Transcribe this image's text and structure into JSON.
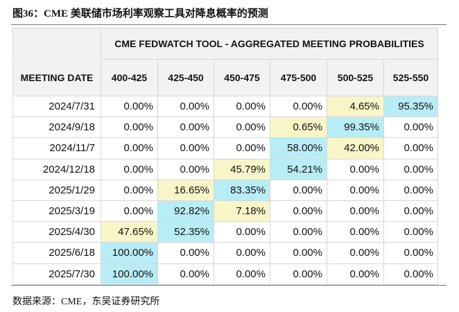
{
  "header": {
    "title": "图36：CME 美联储市场利率观察工具对降息概率的预测"
  },
  "table": {
    "super_header": "CME FEDWATCH TOOL - AGGREGATED MEETING PROBABILITIES",
    "columns": [
      "MEETING DATE",
      "400-425",
      "425-450",
      "450-475",
      "475-500",
      "500-525",
      "525-550"
    ],
    "rows": [
      [
        "2024/7/31",
        "0.00%",
        "0.00%",
        "0.00%",
        "0.00%",
        "4.65%",
        "95.35%"
      ],
      [
        "2024/9/18",
        "0.00%",
        "0.00%",
        "0.00%",
        "0.65%",
        "99.35%",
        "0.00%"
      ],
      [
        "2024/11/7",
        "0.00%",
        "0.00%",
        "0.00%",
        "58.00%",
        "42.00%",
        "0.00%"
      ],
      [
        "2024/12/18",
        "0.00%",
        "0.00%",
        "45.79%",
        "54.21%",
        "0.00%",
        "0.00%"
      ],
      [
        "2025/1/29",
        "0.00%",
        "16.65%",
        "83.35%",
        "0.00%",
        "0.00%",
        "0.00%"
      ],
      [
        "2025/3/19",
        "0.00%",
        "92.82%",
        "7.18%",
        "0.00%",
        "0.00%",
        "0.00%"
      ],
      [
        "2025/4/30",
        "47.65%",
        "52.35%",
        "0.00%",
        "0.00%",
        "0.00%",
        "0.00%"
      ],
      [
        "2025/6/18",
        "100.00%",
        "0.00%",
        "0.00%",
        "0.00%",
        "0.00%",
        "0.00%"
      ],
      [
        "2025/7/30",
        "100.00%",
        "0.00%",
        "0.00%",
        "0.00%",
        "0.00%",
        "0.00%"
      ]
    ]
  },
  "footer": {
    "source": "数据来源：CME，东吴证券研究所"
  }
}
